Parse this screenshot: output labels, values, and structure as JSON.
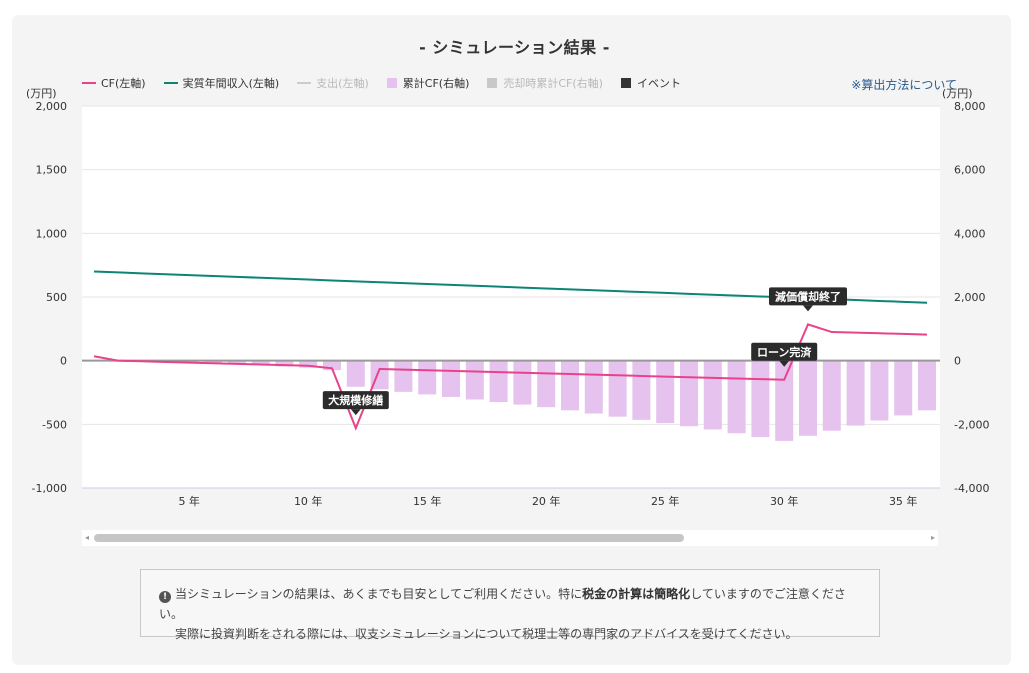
{
  "title": "- シミュレーション結果 -",
  "legend": [
    {
      "label": "CF(左軸)",
      "kind": "line",
      "color": "#e8438a",
      "muted": false
    },
    {
      "label": "実質年間収入(左軸)",
      "kind": "line",
      "color": "#0c8574",
      "muted": false
    },
    {
      "label": "支出(左軸)",
      "kind": "line",
      "color": "#cccccc",
      "muted": true
    },
    {
      "label": "累計CF(右軸)",
      "kind": "box",
      "color": "#e6c3ee",
      "muted": false
    },
    {
      "label": "売却時累計CF(右軸)",
      "kind": "box",
      "color": "#c8c8c8",
      "muted": true
    },
    {
      "label": "イベント",
      "kind": "box",
      "color": "#333333",
      "muted": false
    }
  ],
  "calc_link": "※算出方法について",
  "unit_left": "(万円)",
  "unit_right": "(万円)",
  "chart_data": {
    "type": "bar+line",
    "x_unit": "年",
    "x": [
      1,
      2,
      3,
      4,
      5,
      6,
      7,
      8,
      9,
      10,
      11,
      12,
      13,
      14,
      15,
      16,
      17,
      18,
      19,
      20,
      21,
      22,
      23,
      24,
      25,
      26,
      27,
      28,
      29,
      30,
      31,
      32,
      33,
      34,
      35,
      36
    ],
    "x_ticks": [
      5,
      10,
      15,
      20,
      25,
      30,
      35
    ],
    "x_tick_labels": [
      "5 年",
      "10 年",
      "15 年",
      "20 年",
      "25 年",
      "30 年",
      "35 年"
    ],
    "y_left": {
      "min": -1000,
      "max": 2000,
      "ticks": [
        -1000,
        -500,
        0,
        500,
        1000,
        1500,
        2000
      ],
      "tick_labels": [
        "-1,000",
        "-500",
        "0",
        "500",
        "1,000",
        "1,500",
        "2,000"
      ]
    },
    "y_right": {
      "min": -4000,
      "max": 8000,
      "ticks": [
        -4000,
        -2000,
        0,
        2000,
        4000,
        6000,
        8000
      ],
      "tick_labels": [
        "-4,000",
        "-2,000",
        "0",
        "2,000",
        "4,000",
        "6,000",
        "8,000"
      ]
    },
    "series": [
      {
        "name": "CF(左軸)",
        "axis": "left",
        "type": "line",
        "color": "#e8438a",
        "values": [
          35,
          0,
          -5,
          -10,
          -15,
          -20,
          -25,
          -30,
          -35,
          -40,
          -60,
          -530,
          -65,
          -70,
          -75,
          -80,
          -85,
          -90,
          -95,
          -100,
          -105,
          -110,
          -115,
          -120,
          -125,
          -130,
          -135,
          -140,
          -145,
          -150,
          285,
          225,
          220,
          215,
          210,
          205
        ]
      },
      {
        "name": "実質年間収入(左軸)",
        "axis": "left",
        "type": "line",
        "color": "#0c8574",
        "values": [
          700,
          693,
          686,
          679,
          672,
          665,
          658,
          651,
          644,
          637,
          630,
          623,
          616,
          609,
          602,
          595,
          588,
          581,
          574,
          567,
          560,
          553,
          546,
          539,
          532,
          525,
          518,
          511,
          504,
          497,
          490,
          483,
          476,
          469,
          462,
          455
        ]
      },
      {
        "name": "累計CF(右軸)",
        "axis": "right",
        "type": "bar",
        "color": "#e6c3ee",
        "values": [
          0,
          0,
          -20,
          -40,
          -60,
          -80,
          -100,
          -140,
          -180,
          -220,
          -300,
          -820,
          -900,
          -980,
          -1060,
          -1140,
          -1220,
          -1300,
          -1380,
          -1460,
          -1560,
          -1660,
          -1760,
          -1860,
          -1960,
          -2060,
          -2160,
          -2280,
          -2400,
          -2520,
          -2360,
          -2200,
          -2040,
          -1880,
          -1720,
          -1560
        ]
      }
    ],
    "events": [
      {
        "label": "大規模修繕",
        "x": 12,
        "value": -530,
        "placement": "above"
      },
      {
        "label": "ローン完済",
        "x": 30,
        "value": -150,
        "placement": "above"
      },
      {
        "label": "減価償却終了",
        "x": 31,
        "value": 285,
        "placement": "above"
      }
    ]
  },
  "notice": {
    "icon": "!",
    "line1_pre": "当シミュレーションの結果は、あくまでも目安としてご利用ください。特に",
    "line1_bold": "税金の計算は簡略化",
    "line1_post": "していますのでご注意ください。",
    "line2": "実際に投資判断をされる際には、収支シミュレーションについて税理士等の専門家のアドバイスを受けてください。"
  },
  "scroll_left_arrow": "◂",
  "scroll_right_arrow": "▸"
}
